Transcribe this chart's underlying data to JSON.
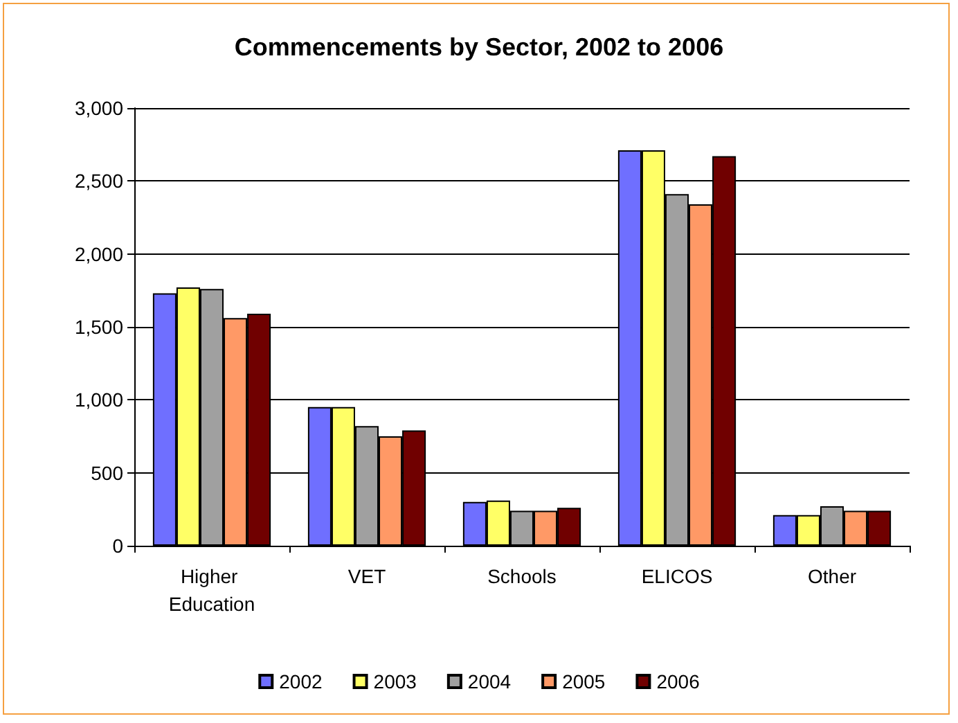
{
  "chart_data": {
    "type": "bar",
    "title": "Commencements by Sector, 2002 to 2006",
    "categories": [
      "Higher Education",
      "VET",
      "Schools",
      "ELICOS",
      "Other"
    ],
    "series": [
      {
        "name": "2002",
        "color": "#6f6fff",
        "values": [
          1730,
          950,
          300,
          2710,
          210
        ]
      },
      {
        "name": "2003",
        "color": "#ffff66",
        "values": [
          1770,
          950,
          310,
          2710,
          210
        ]
      },
      {
        "name": "2004",
        "color": "#a0a0a0",
        "values": [
          1760,
          820,
          240,
          2410,
          270
        ]
      },
      {
        "name": "2005",
        "color": "#ff9966",
        "values": [
          1560,
          750,
          240,
          2340,
          240
        ]
      },
      {
        "name": "2006",
        "color": "#700000",
        "values": [
          1590,
          790,
          260,
          2670,
          240
        ]
      }
    ],
    "ylim": [
      0,
      3000
    ],
    "yticks": [
      0,
      500,
      {
        "value": 1000,
        "label": "1,000"
      },
      {
        "value": 1500,
        "label": "1,500"
      },
      {
        "value": 2000,
        "label": "2,000"
      },
      {
        "value": 2500,
        "label": "2,500"
      },
      {
        "value": 3000,
        "label": "3,000"
      }
    ],
    "grid": "y",
    "legend": "bottom"
  }
}
